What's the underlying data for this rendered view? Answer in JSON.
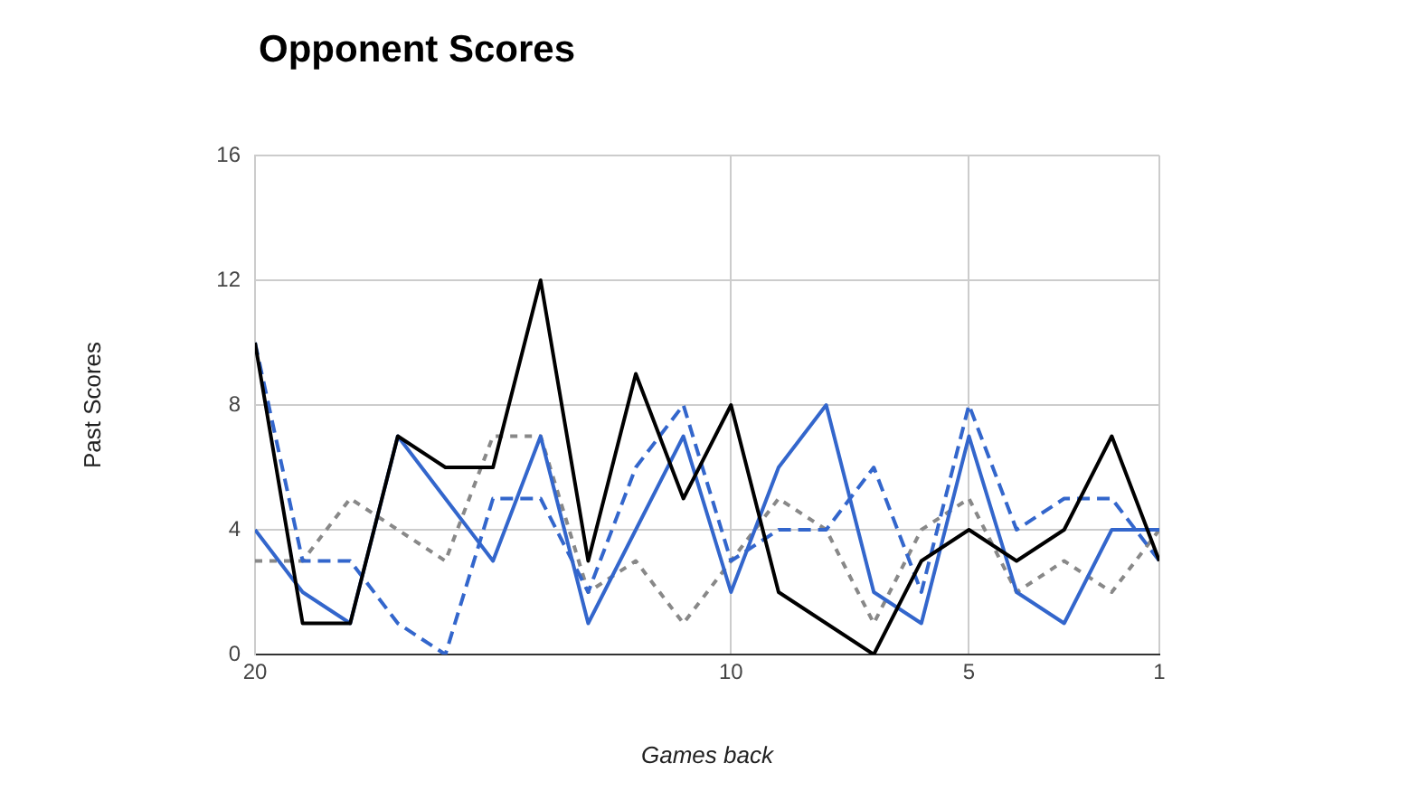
{
  "chart_data": {
    "type": "line",
    "title": "Opponent Scores",
    "xlabel": "Games back",
    "ylabel": "Past Scores",
    "x": [
      20,
      19,
      18,
      17,
      16,
      15,
      14,
      13,
      12,
      11,
      10,
      9,
      8,
      7,
      6,
      5,
      4,
      3,
      2,
      1
    ],
    "xlim": [
      20,
      1
    ],
    "xticks": [
      20,
      10,
      5,
      1
    ],
    "ylim": [
      0,
      16
    ],
    "yticks": [
      0,
      4,
      8,
      12,
      16
    ],
    "grid": true,
    "marker": "none",
    "series": [
      {
        "color": "#000000",
        "line_style": "solid",
        "values": [
          10,
          1,
          1,
          7,
          6,
          6,
          12,
          3,
          9,
          5,
          8,
          2,
          1,
          0,
          3,
          4,
          3,
          4,
          7,
          3
        ]
      },
      {
        "color": "#3366cc",
        "line_style": "solid",
        "values": [
          4,
          2,
          1,
          7,
          5,
          3,
          7,
          1,
          4,
          7,
          2,
          6,
          8,
          2,
          1,
          7,
          2,
          1,
          4,
          4
        ]
      },
      {
        "color": "#3366cc",
        "line_style": "dashed",
        "values": [
          10,
          3,
          3,
          1,
          0,
          5,
          5,
          2,
          6,
          8,
          3,
          4,
          4,
          6,
          2,
          8,
          4,
          5,
          5,
          3
        ]
      },
      {
        "color": "#888888",
        "line_style": "dotted",
        "values": [
          3,
          3,
          5,
          4,
          3,
          7,
          7,
          2,
          3,
          1,
          3,
          5,
          4,
          1,
          4,
          5,
          2,
          3,
          2,
          4
        ]
      }
    ]
  }
}
